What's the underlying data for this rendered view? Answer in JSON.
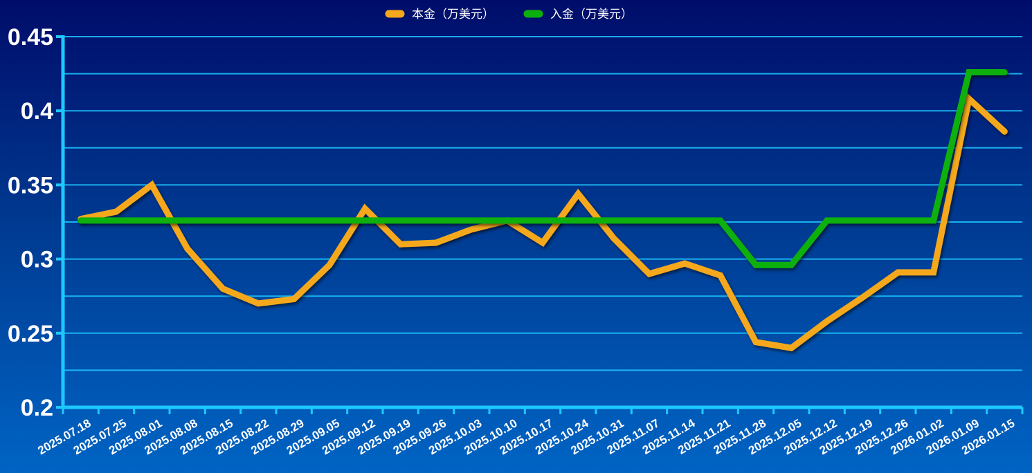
{
  "chart_data": {
    "type": "line",
    "title": "",
    "xlabel": "",
    "ylabel": "",
    "ylim": [
      0.2,
      0.45
    ],
    "yticks": [
      "0.2",
      "0.25",
      "0.3",
      "0.35",
      "0.4",
      "0.45"
    ],
    "grid": true,
    "legend_position": "top-center",
    "x": [
      "2025.07.18",
      "2025.07.25",
      "2025.08.01",
      "2025.08.08",
      "2025.08.15",
      "2025.08.22",
      "2025.08.29",
      "2025.09.05",
      "2025.09.12",
      "2025.09.19",
      "2025.09.26",
      "2025.10.03",
      "2025.10.10",
      "2025.10.17",
      "2025.10.24",
      "2025.10.31",
      "2025.11.07",
      "2025.11.14",
      "2025.11.21",
      "2025.11.28",
      "2025.12.05",
      "2025.12.12",
      "2025.12.19",
      "2025.12.26",
      "2026.01.02",
      "2026.01.09",
      "2026.01.15"
    ],
    "series": [
      {
        "name": "本金（万美元）",
        "color": "#f5a81c",
        "values": [
          0.327,
          0.332,
          0.35,
          0.307,
          0.28,
          0.27,
          0.273,
          0.296,
          0.334,
          0.31,
          0.311,
          0.32,
          0.326,
          0.311,
          0.344,
          0.314,
          0.29,
          0.297,
          0.289,
          0.244,
          0.24,
          0.258,
          0.274,
          0.291,
          0.291,
          0.408,
          0.386
        ]
      },
      {
        "name": "入金（万美元）",
        "color": "#0cb00c",
        "values": [
          0.326,
          0.326,
          0.326,
          0.326,
          0.326,
          0.326,
          0.326,
          0.326,
          0.326,
          0.326,
          0.326,
          0.326,
          0.326,
          0.326,
          0.326,
          0.326,
          0.326,
          0.326,
          0.326,
          0.296,
          0.296,
          0.326,
          0.326,
          0.326,
          0.326,
          0.426,
          0.426
        ]
      }
    ]
  }
}
